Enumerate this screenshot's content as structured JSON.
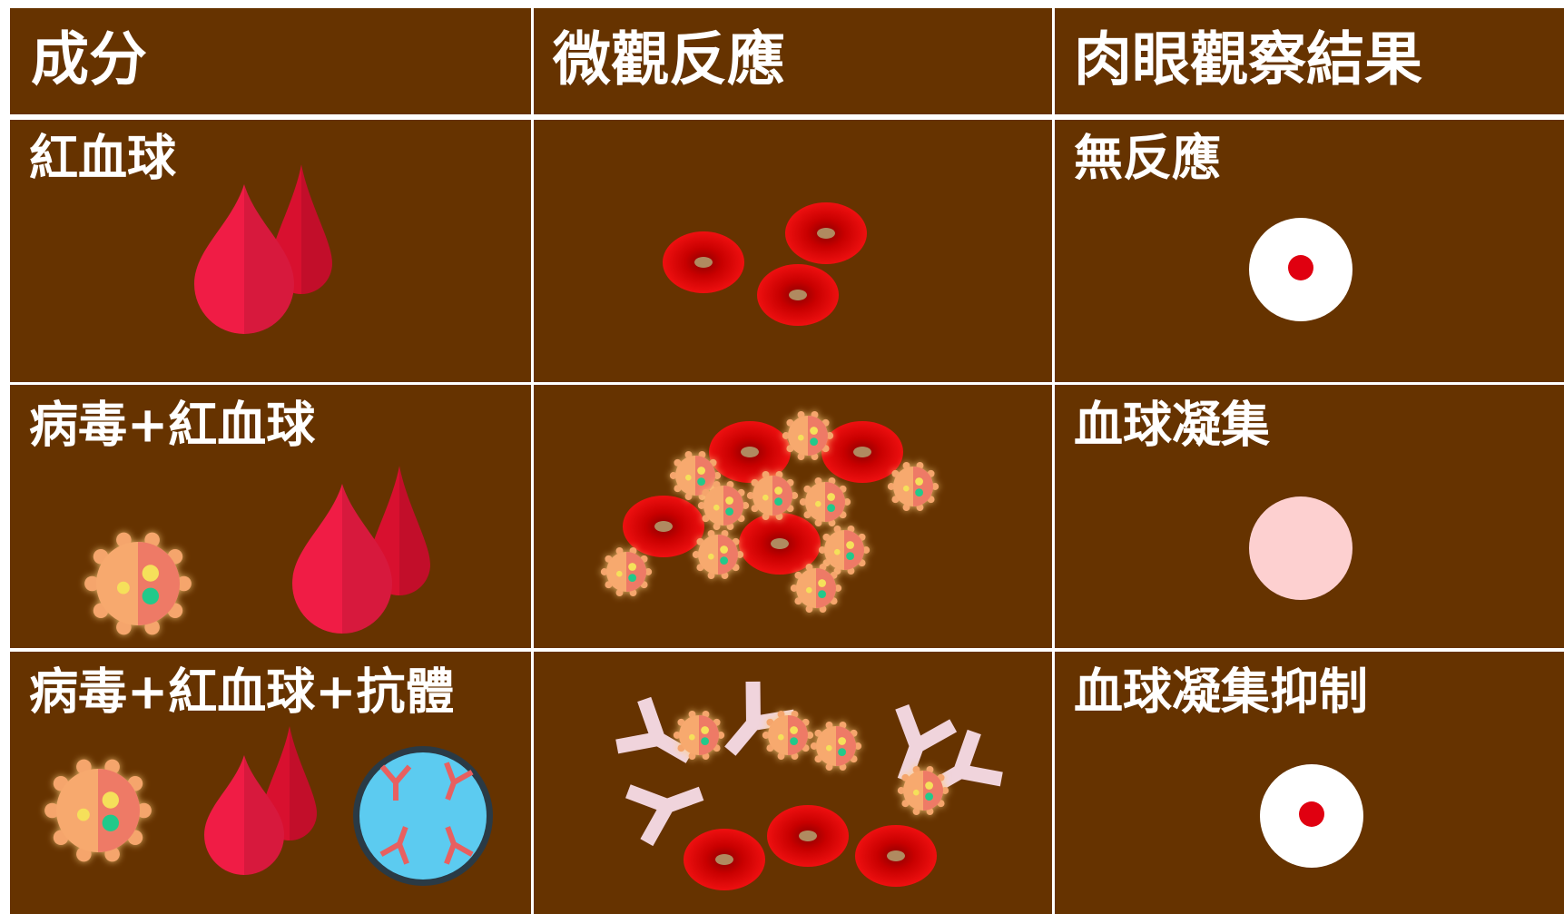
{
  "table": {
    "header": [
      "成分",
      "微觀反應",
      "肉眼觀察結果"
    ],
    "rows": [
      [
        "紅血球",
        "無反應"
      ],
      [
        "病毒+紅血球",
        "血球凝集"
      ],
      [
        "病毒+紅血球+抗體",
        "血球凝集抑制"
      ]
    ]
  }
}
